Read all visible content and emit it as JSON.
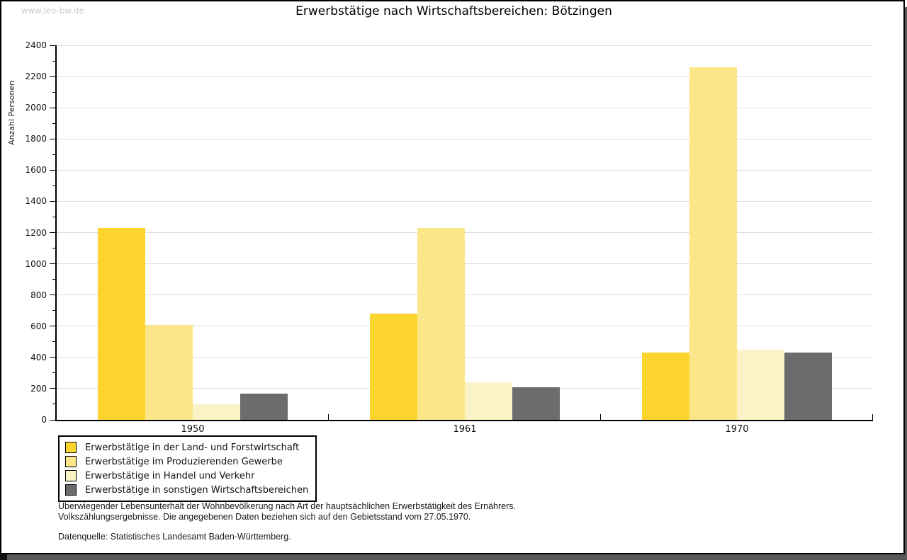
{
  "watermark": "www.leo-bw.de",
  "title": "Erwerbstätige nach Wirtschaftsbereichen: Bötzingen",
  "chart_data": {
    "type": "bar",
    "title": "Erwerbstätige nach Wirtschaftsbereichen: Bötzingen",
    "categories": [
      "1950",
      "1961",
      "1970"
    ],
    "series": [
      {
        "name": "Erwerbstätige in der Land- und Forstwirtschaft",
        "color": "#FBD42E",
        "values": [
          1230,
          680,
          430
        ]
      },
      {
        "name": "Erwerbstätige im Produzierenden Gewerbe",
        "color": "#FBE78A",
        "values": [
          610,
          1230,
          2260
        ]
      },
      {
        "name": "Erwerbstätige in Handel und Verkehr",
        "color": "#FBF3C6",
        "values": [
          100,
          240,
          450
        ]
      },
      {
        "name": "Erwerbstätige in sonstigen Wirtschaftsbereichen",
        "color": "#6C6C6C",
        "values": [
          170,
          210,
          430
        ]
      }
    ],
    "xlabel": "",
    "ylabel": "Anzahl Personen",
    "ylim": [
      0,
      2400
    ],
    "ytick_major_step": 200,
    "ytick_minor_step": 100,
    "grid": true,
    "gridline_color": "#DDDDDD",
    "legend_position": "bottom-left"
  },
  "footer": {
    "line1": "Überwiegender Lebensunterhalt der Wohnbevölkerung nach Art der hauptsächlichen Erwerbstätigkeit des Ernährers.",
    "line2": "Volkszählungsergebnisse. Die angegebenen Daten beziehen sich auf den Gebietsstand vom 27.05.1970.",
    "source": "Datenquelle: Statistisches Landesamt Baden-Württemberg."
  }
}
